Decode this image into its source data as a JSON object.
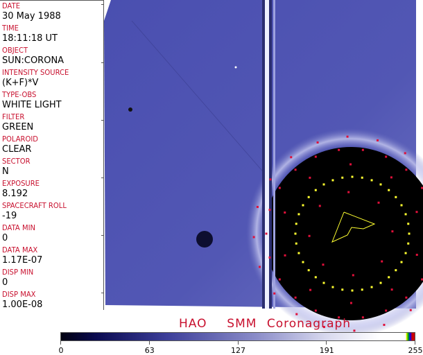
{
  "header_fields": [
    {
      "label": "DATE",
      "value": "30 May 1988"
    },
    {
      "label": "TIME",
      "value": "18:11:18 UT"
    },
    {
      "label": "OBJECT",
      "value": "SUN:CORONA"
    },
    {
      "label": "INTENSITY SOURCE",
      "value": "(K+F)*V"
    },
    {
      "label": "TYPE-OBS",
      "value": "WHITE LIGHT"
    },
    {
      "label": "FILTER",
      "value": "GREEN"
    },
    {
      "label": "POLAROID",
      "value": "CLEAR"
    },
    {
      "label": "SECTOR",
      "value": "N"
    },
    {
      "label": "EXPOSURE",
      "value": "8.192"
    },
    {
      "label": "SPACECRAFT ROLL",
      "value": "-19"
    },
    {
      "label": "DATA MIN",
      "value": "0"
    },
    {
      "label": "DATA MAX",
      "value": "1.17E-07"
    },
    {
      "label": "DISP MIN",
      "value": "0"
    },
    {
      "label": "DISP MAX",
      "value": "1.00E-08"
    }
  ],
  "title": "HAO  SMM Coronagraph",
  "colorbar": {
    "ticks": [
      "0",
      "63",
      "127",
      "191",
      "255"
    ],
    "min": 0,
    "max": 255
  },
  "colors": {
    "label": "#c8102e",
    "background_blue": "#4a4eae",
    "marker_red": "#e0103a",
    "marker_yellow": "#ffff30"
  }
}
